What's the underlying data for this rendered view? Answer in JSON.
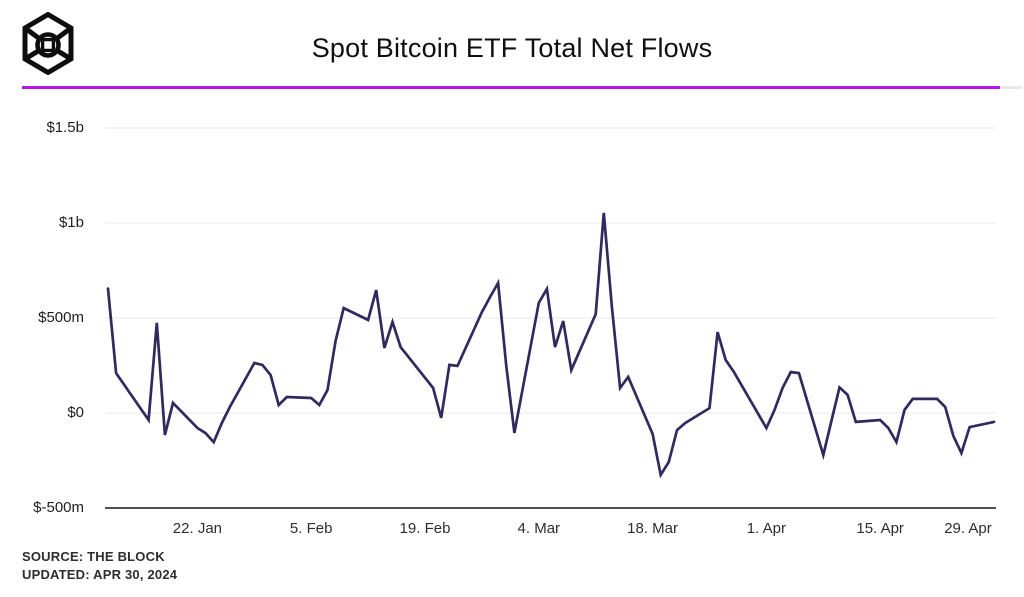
{
  "header": {
    "title": "Spot Bitcoin ETF Total Net Flows",
    "logo_name": "the-block-logo"
  },
  "colors": {
    "divider_purple": "#b516f0",
    "line": "#302a5e",
    "gridline": "#ececec",
    "axis": "#4f4f4f"
  },
  "footer": {
    "source": "SOURCE: THE BLOCK",
    "updated": "UPDATED: APR 30, 2024"
  },
  "chart_data": {
    "type": "line",
    "title": "Spot Bitcoin ETF Total Net Flows",
    "unit": "USD millions (net flow per trading day)",
    "grid": "horizontal",
    "legend": "none",
    "ylim": [
      -500,
      1570
    ],
    "y_ticks": [
      {
        "value": 1500,
        "label": "$1.5b"
      },
      {
        "value": 1000,
        "label": "$1b"
      },
      {
        "value": 500,
        "label": "$500m"
      },
      {
        "value": 0,
        "label": "$0"
      },
      {
        "value": -500,
        "label": "$-500m"
      }
    ],
    "x_ticks": [
      {
        "date": "2024-01-22",
        "label": "22. Jan"
      },
      {
        "date": "2024-02-05",
        "label": "5. Feb"
      },
      {
        "date": "2024-02-19",
        "label": "19. Feb"
      },
      {
        "date": "2024-03-04",
        "label": "4. Mar"
      },
      {
        "date": "2024-03-18",
        "label": "18. Mar"
      },
      {
        "date": "2024-04-01",
        "label": "1. Apr"
      },
      {
        "date": "2024-04-15",
        "label": "15. Apr"
      },
      {
        "date": "2024-04-29",
        "label": "29. Apr"
      }
    ],
    "series": [
      {
        "name": "Total Net Flows ($m)",
        "points": [
          {
            "date": "2024-01-11",
            "value": 655
          },
          {
            "date": "2024-01-12",
            "value": 210
          },
          {
            "date": "2024-01-16",
            "value": -37
          },
          {
            "date": "2024-01-17",
            "value": 474
          },
          {
            "date": "2024-01-18",
            "value": -116
          },
          {
            "date": "2024-01-19",
            "value": 53
          },
          {
            "date": "2024-01-22",
            "value": -79
          },
          {
            "date": "2024-01-23",
            "value": -106
          },
          {
            "date": "2024-01-24",
            "value": -153
          },
          {
            "date": "2024-01-25",
            "value": -53
          },
          {
            "date": "2024-01-26",
            "value": 32
          },
          {
            "date": "2024-01-29",
            "value": 263
          },
          {
            "date": "2024-01-30",
            "value": 253
          },
          {
            "date": "2024-01-31",
            "value": 200
          },
          {
            "date": "2024-02-01",
            "value": 42
          },
          {
            "date": "2024-02-02",
            "value": 84
          },
          {
            "date": "2024-02-05",
            "value": 79
          },
          {
            "date": "2024-02-06",
            "value": 42
          },
          {
            "date": "2024-02-07",
            "value": 121
          },
          {
            "date": "2024-02-08",
            "value": 380
          },
          {
            "date": "2024-02-09",
            "value": 552
          },
          {
            "date": "2024-02-12",
            "value": 490
          },
          {
            "date": "2024-02-13",
            "value": 647
          },
          {
            "date": "2024-02-14",
            "value": 342
          },
          {
            "date": "2024-02-15",
            "value": 479
          },
          {
            "date": "2024-02-16",
            "value": 347
          },
          {
            "date": "2024-02-20",
            "value": 132
          },
          {
            "date": "2024-02-21",
            "value": -26
          },
          {
            "date": "2024-02-22",
            "value": 253
          },
          {
            "date": "2024-02-23",
            "value": 248
          },
          {
            "date": "2024-02-26",
            "value": 531
          },
          {
            "date": "2024-02-27",
            "value": 610
          },
          {
            "date": "2024-02-28",
            "value": 684
          },
          {
            "date": "2024-02-29",
            "value": 247
          },
          {
            "date": "2024-03-01",
            "value": -105
          },
          {
            "date": "2024-03-04",
            "value": 580
          },
          {
            "date": "2024-03-05",
            "value": 653
          },
          {
            "date": "2024-03-06",
            "value": 347
          },
          {
            "date": "2024-03-07",
            "value": 484
          },
          {
            "date": "2024-03-08",
            "value": 226
          },
          {
            "date": "2024-03-11",
            "value": 520
          },
          {
            "date": "2024-03-12",
            "value": 1053
          },
          {
            "date": "2024-03-13",
            "value": 558
          },
          {
            "date": "2024-03-14",
            "value": 132
          },
          {
            "date": "2024-03-15",
            "value": 190
          },
          {
            "date": "2024-03-18",
            "value": -110
          },
          {
            "date": "2024-03-19",
            "value": -326
          },
          {
            "date": "2024-03-20",
            "value": -258
          },
          {
            "date": "2024-03-21",
            "value": -90
          },
          {
            "date": "2024-03-22",
            "value": -53
          },
          {
            "date": "2024-03-25",
            "value": 26
          },
          {
            "date": "2024-03-26",
            "value": 426
          },
          {
            "date": "2024-03-27",
            "value": 279
          },
          {
            "date": "2024-03-28",
            "value": 216
          },
          {
            "date": "2024-04-01",
            "value": -79
          },
          {
            "date": "2024-04-02",
            "value": 16
          },
          {
            "date": "2024-04-03",
            "value": 132
          },
          {
            "date": "2024-04-04",
            "value": 216
          },
          {
            "date": "2024-04-05",
            "value": 210
          },
          {
            "date": "2024-04-08",
            "value": -221
          },
          {
            "date": "2024-04-09",
            "value": -42
          },
          {
            "date": "2024-04-10",
            "value": 135
          },
          {
            "date": "2024-04-11",
            "value": 95
          },
          {
            "date": "2024-04-12",
            "value": -47
          },
          {
            "date": "2024-04-15",
            "value": -37
          },
          {
            "date": "2024-04-16",
            "value": -79
          },
          {
            "date": "2024-04-17",
            "value": -153
          },
          {
            "date": "2024-04-18",
            "value": 16
          },
          {
            "date": "2024-04-19",
            "value": 74
          },
          {
            "date": "2024-04-22",
            "value": 74
          },
          {
            "date": "2024-04-23",
            "value": 32
          },
          {
            "date": "2024-04-24",
            "value": -120
          },
          {
            "date": "2024-04-25",
            "value": -211
          },
          {
            "date": "2024-04-26",
            "value": -74
          },
          {
            "date": "2024-04-29",
            "value": -47
          }
        ]
      }
    ]
  }
}
